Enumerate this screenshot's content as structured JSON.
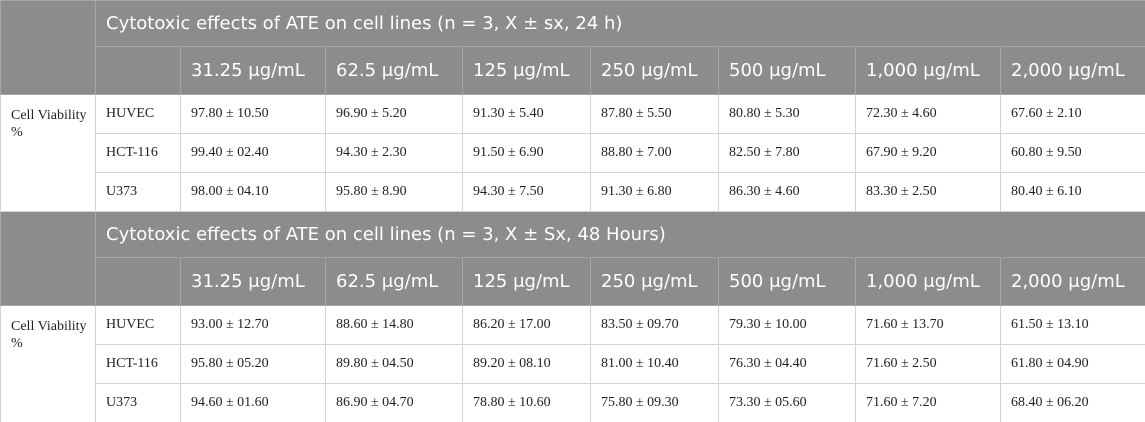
{
  "sections": [
    {
      "title": "Cytotoxic effects of ATE on cell lines (n = 3, X ± sx, 24 h)",
      "headers": [
        "31.25 μg/mL",
        "62.5 μg/mL",
        "125 μg/mL",
        "250 μg/mL",
        "500 μg/mL",
        "1,000 μg/mL",
        "2,000 μg/mL"
      ],
      "row_label": "Cell Viability %",
      "rows": [
        {
          "cell_line": "HUVEC",
          "values": [
            "97.80 ± 10.50",
            "96.90 ± 5.20",
            "91.30 ± 5.40",
            "87.80 ± 5.50",
            "80.80 ± 5.30",
            "72.30 ± 4.60",
            "67.60 ± 2.10"
          ]
        },
        {
          "cell_line": "HCT-116",
          "values": [
            "99.40 ± 02.40",
            "94.30 ± 2.30",
            "91.50 ± 6.90",
            "88.80 ± 7.00",
            "82.50 ± 7.80",
            "67.90 ± 9.20",
            "60.80 ± 9.50"
          ]
        },
        {
          "cell_line": "U373",
          "values": [
            "98.00 ± 04.10",
            "95.80 ± 8.90",
            "94.30 ± 7.50",
            "91.30 ± 6.80",
            "86.30 ± 4.60",
            "83.30 ± 2.50",
            "80.40 ± 6.10"
          ]
        }
      ]
    },
    {
      "title": "Cytotoxic effects of ATE on cell lines (n = 3, X ± Sx, 48 Hours)",
      "headers": [
        "31.25 μg/mL",
        "62.5 μg/mL",
        "125 μg/mL",
        "250 μg/mL",
        "500 μg/mL",
        "1,000 μg/mL",
        "2,000 μg/mL"
      ],
      "row_label": "Cell Viability %",
      "rows": [
        {
          "cell_line": "HUVEC",
          "values": [
            "93.00 ± 12.70",
            "88.60 ± 14.80",
            "86.20 ± 17.00",
            "83.50 ± 09.70",
            "79.30 ± 10.00",
            "71.60 ± 13.70",
            "61.50 ± 13.10"
          ]
        },
        {
          "cell_line": "HCT-116",
          "values": [
            "95.80 ± 05.20",
            "89.80 ± 04.50",
            "89.20 ± 08.10",
            "81.00 ± 10.40",
            "76.30 ± 04.40",
            "71.60 ± 2.50",
            "61.80 ± 04.90"
          ]
        },
        {
          "cell_line": "U373",
          "values": [
            "94.60 ± 01.60",
            "86.90 ± 04.70",
            "78.80 ± 10.60",
            "75.80 ± 09.30",
            "73.30 ± 05.60",
            "71.60 ± 7.20",
            "68.40 ± 06.20"
          ]
        }
      ]
    }
  ]
}
